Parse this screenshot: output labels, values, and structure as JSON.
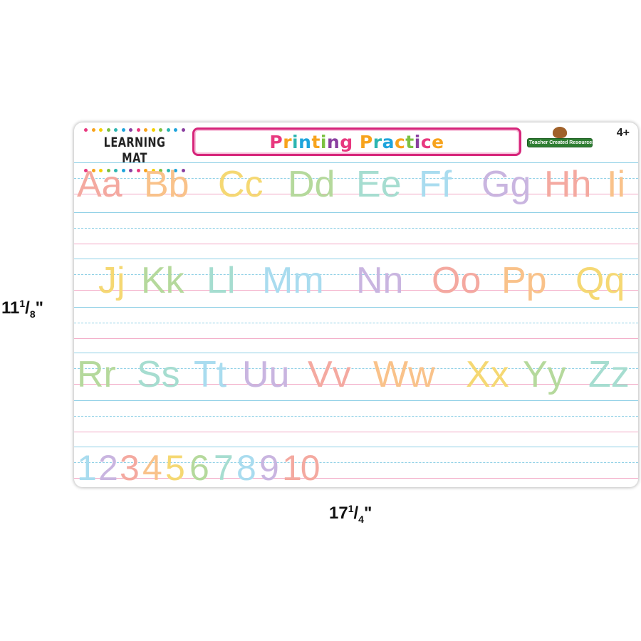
{
  "header": {
    "brand": "LEARNING MAT",
    "title": "Printing Practice",
    "title_colors": [
      "#e8387f",
      "#f7a31c",
      "#2cb5b1",
      "#1ea4dc",
      "#f7a31c",
      "#7cc142",
      "#8a3fa0"
    ],
    "publisher": "Teacher Created Resources",
    "age": "4+"
  },
  "dimensions": {
    "height_whole": "11",
    "height_num": "1",
    "height_den": "8",
    "width_whole": "17",
    "width_num": "1",
    "width_den": "4",
    "inch": "\""
  },
  "colors": {
    "pink": "#f4a9a0",
    "orange": "#f9c28a",
    "yellow": "#f5d873",
    "green": "#b5d99c",
    "teal": "#a6ddd0",
    "blue": "#a9dcef",
    "purple": "#c9b5e0",
    "guide_blue": "#8fd0e6",
    "guide_pink": "#f2a7c4"
  },
  "rows": [
    {
      "glyphs": [
        {
          "text": "Aa",
          "color": "pink"
        },
        {
          "text": "Bb",
          "color": "orange"
        },
        {
          "text": "Cc",
          "color": "yellow"
        },
        {
          "text": "Dd",
          "color": "green"
        },
        {
          "text": "Ee",
          "color": "teal"
        },
        {
          "text": "Ff",
          "color": "blue"
        },
        {
          "text": "Gg",
          "color": "purple"
        },
        {
          "text": "Hh",
          "color": "pink"
        },
        {
          "text": "Ii",
          "color": "orange"
        }
      ]
    },
    {
      "glyphs": [
        {
          "text": "Jj",
          "color": "yellow"
        },
        {
          "text": "Kk",
          "color": "green"
        },
        {
          "text": "Ll",
          "color": "teal"
        },
        {
          "text": "Mm",
          "color": "blue"
        },
        {
          "text": "Nn",
          "color": "purple"
        },
        {
          "text": "Oo",
          "color": "pink"
        },
        {
          "text": "Pp",
          "color": "orange"
        },
        {
          "text": "Qq",
          "color": "yellow"
        }
      ]
    },
    {
      "glyphs": [
        {
          "text": "Rr",
          "color": "green"
        },
        {
          "text": "Ss",
          "color": "teal"
        },
        {
          "text": "Tt",
          "color": "blue"
        },
        {
          "text": "Uu",
          "color": "purple"
        },
        {
          "text": "Vv",
          "color": "pink"
        },
        {
          "text": "Ww",
          "color": "orange"
        },
        {
          "text": "Xx",
          "color": "yellow"
        },
        {
          "text": "Yy",
          "color": "green"
        },
        {
          "text": "Zz",
          "color": "teal"
        }
      ]
    },
    {
      "glyphs": [
        {
          "text": "1",
          "color": "blue"
        },
        {
          "text": "2",
          "color": "purple"
        },
        {
          "text": "3",
          "color": "pink"
        },
        {
          "text": "4",
          "color": "orange"
        },
        {
          "text": "5",
          "color": "yellow"
        },
        {
          "text": "6",
          "color": "green"
        },
        {
          "text": "7",
          "color": "teal"
        },
        {
          "text": "8",
          "color": "blue"
        },
        {
          "text": "9",
          "color": "purple"
        },
        {
          "text": "10",
          "color": "pink"
        }
      ]
    }
  ]
}
